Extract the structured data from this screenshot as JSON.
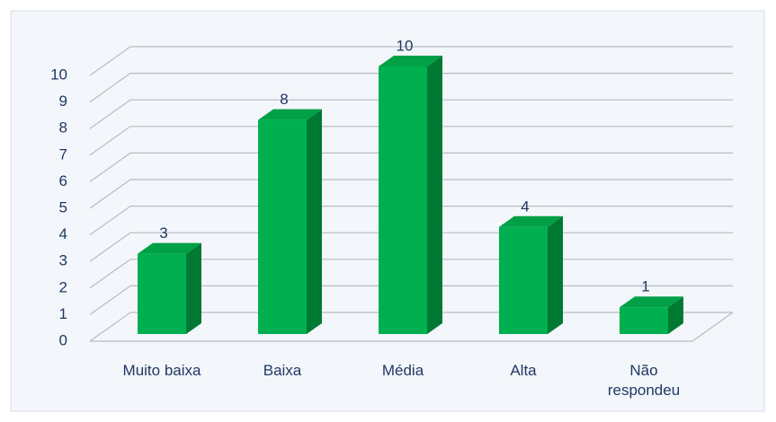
{
  "chart_data": {
    "type": "bar3d",
    "categories": [
      "Muito baixa",
      "Baixa",
      "Média",
      "Alta",
      "Não respondeu"
    ],
    "values": [
      3,
      8,
      10,
      4,
      1
    ],
    "color": "#00b050",
    "ylim": [
      0,
      10
    ],
    "yticks": [
      0,
      1,
      2,
      3,
      4,
      5,
      6,
      7,
      8,
      9,
      10
    ],
    "grid": true
  }
}
